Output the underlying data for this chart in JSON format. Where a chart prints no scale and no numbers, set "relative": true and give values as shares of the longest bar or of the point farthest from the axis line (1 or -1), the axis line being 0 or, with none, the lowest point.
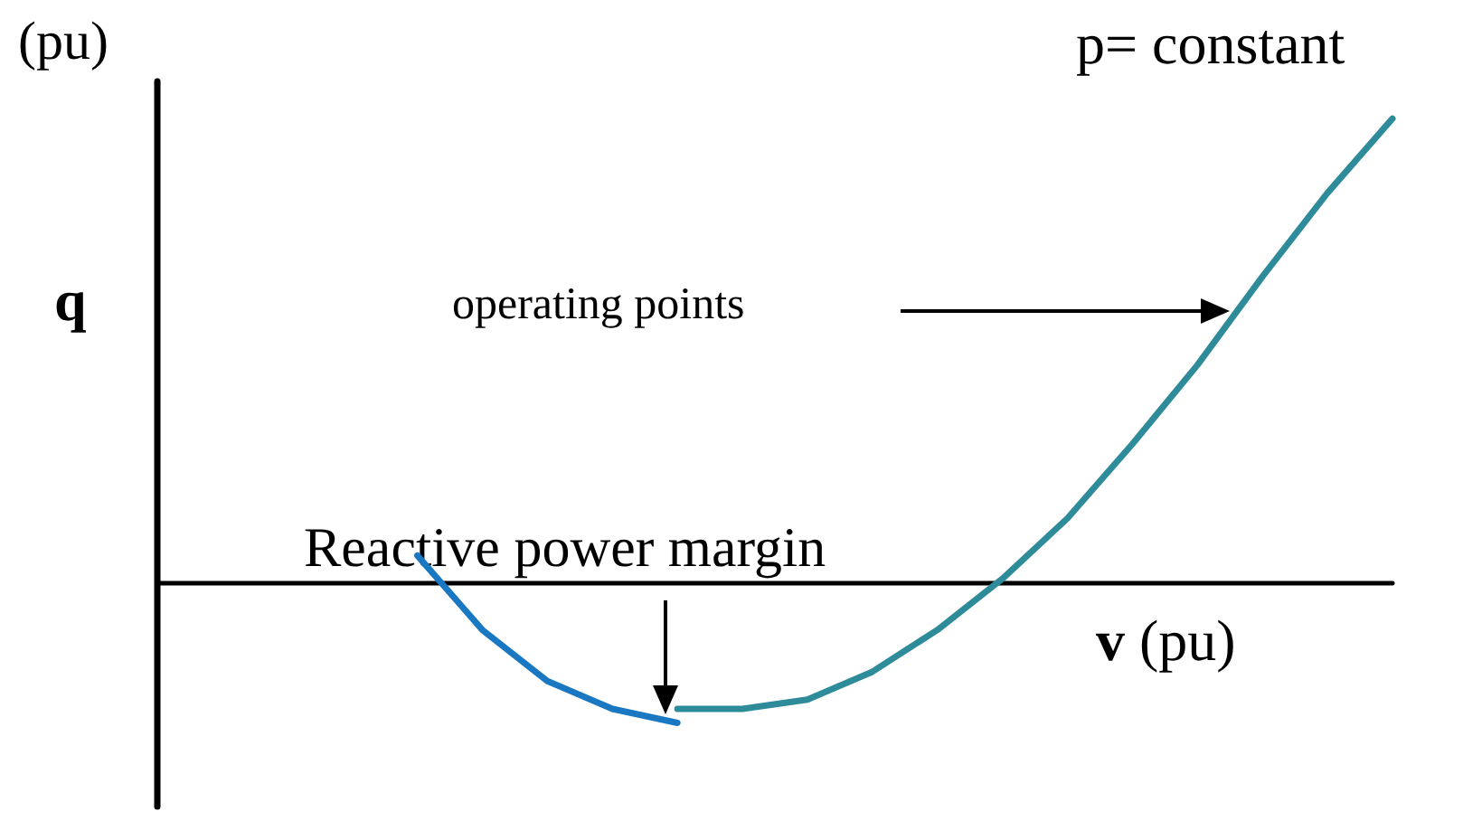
{
  "chart_data": {
    "type": "line",
    "relative": true,
    "ylabel": "q",
    "xlabel": "v (pu)",
    "categories": [
      null,
      null,
      null,
      null,
      null,
      null,
      null,
      null,
      null,
      null,
      null,
      null,
      null,
      null,
      null,
      null,
      null,
      null,
      null,
      null
    ],
    "series": [
      {
        "color": "#1a78c2",
        "values": [
          null,
          null,
          null,
          null,
          0.06,
          -0.1,
          -0.21,
          -0.27,
          -0.3,
          null,
          null,
          null,
          null,
          null,
          null,
          null,
          null,
          null,
          null,
          null
        ]
      },
      {
        "color": "#2e8b99",
        "values": [
          null,
          null,
          null,
          null,
          null,
          null,
          null,
          null,
          -0.27,
          -0.27,
          -0.25,
          -0.19,
          -0.1,
          0.01,
          0.14,
          0.3,
          0.47,
          0.66,
          0.84,
          1
        ]
      }
    ],
    "annotations": [
      "(pu)",
      "p= constant",
      "operating points",
      "Reactive power margin"
    ],
    "marker": "none",
    "grid": false
  }
}
